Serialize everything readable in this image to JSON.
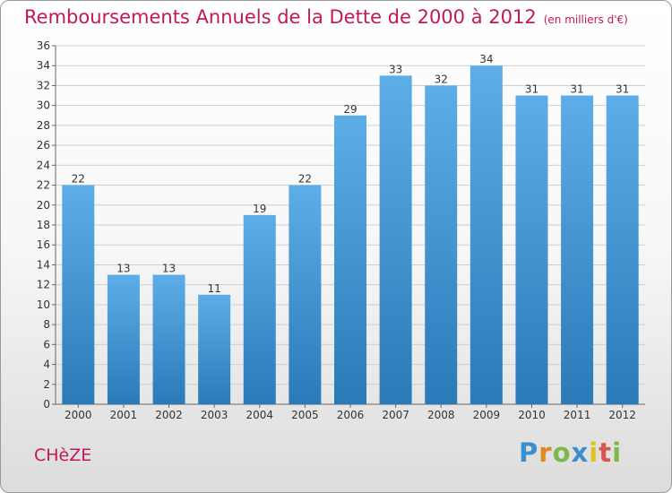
{
  "chart_data": {
    "type": "bar",
    "title": "Remboursements Annuels de la Dette de 2000 à 2012",
    "subtitle": "(en milliers d'€)",
    "categories": [
      "2000",
      "2001",
      "2002",
      "2003",
      "2004",
      "2005",
      "2006",
      "2007",
      "2008",
      "2009",
      "2010",
      "2011",
      "2012"
    ],
    "values": [
      22,
      13,
      13,
      11,
      19,
      22,
      29,
      33,
      32,
      34,
      31,
      31,
      31
    ],
    "ylim": [
      0,
      36
    ],
    "yticks": [
      0,
      2,
      4,
      6,
      8,
      10,
      12,
      14,
      16,
      18,
      20,
      22,
      24,
      26,
      28,
      30,
      32,
      34,
      36
    ],
    "grid": true,
    "colors": {
      "bar_top": "#5dade8",
      "bar_bottom": "#2a7ab8",
      "title": "#c2185b"
    }
  },
  "footer": {
    "commune": "CHèZE",
    "logo_letters": [
      {
        "ch": "P",
        "color": "#3a8fd0"
      },
      {
        "ch": "r",
        "color": "#e08a1e"
      },
      {
        "ch": "o",
        "color": "#7db84a"
      },
      {
        "ch": "x",
        "color": "#3a8fd0"
      },
      {
        "ch": "i",
        "color": "#e0c31e"
      },
      {
        "ch": "t",
        "color": "#d9534f"
      },
      {
        "ch": "i",
        "color": "#7db84a"
      }
    ]
  }
}
